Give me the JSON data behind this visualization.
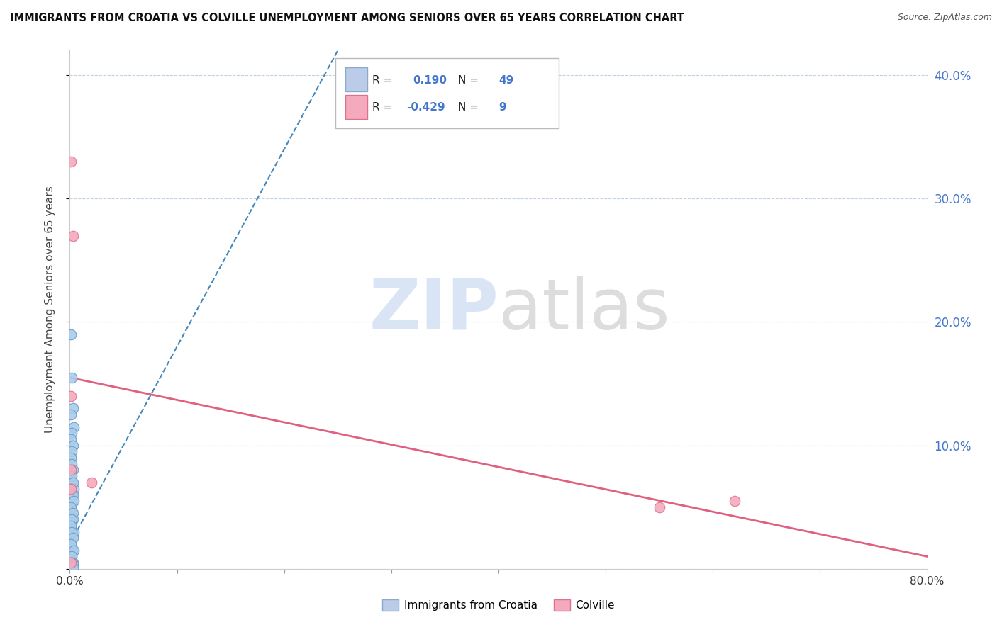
{
  "title": "IMMIGRANTS FROM CROATIA VS COLVILLE UNEMPLOYMENT AMONG SENIORS OVER 65 YEARS CORRELATION CHART",
  "source": "Source: ZipAtlas.com",
  "ylabel": "Unemployment Among Seniors over 65 years",
  "x_bottom_label1": "Immigrants from Croatia",
  "x_bottom_label2": "Colville",
  "xlim": [
    0.0,
    0.8
  ],
  "ylim": [
    0.0,
    0.42
  ],
  "yticks": [
    0.0,
    0.1,
    0.2,
    0.3,
    0.4
  ],
  "ytick_labels_right": [
    "",
    "10.0%",
    "20.0%",
    "30.0%",
    "40.0%"
  ],
  "xticks": [
    0.0,
    0.1,
    0.2,
    0.3,
    0.4,
    0.5,
    0.6,
    0.7,
    0.8
  ],
  "xtick_labels": [
    "0.0%",
    "",
    "",
    "",
    "",
    "",
    "",
    "",
    "80.0%"
  ],
  "blue_R": 0.19,
  "blue_N": 49,
  "pink_R": -0.429,
  "pink_N": 9,
  "blue_scatter_color": "#AACCE8",
  "blue_scatter_edge": "#6699CC",
  "pink_scatter_color": "#F4AABC",
  "pink_scatter_edge": "#E07090",
  "trendline_blue_color": "#4488BB",
  "trendline_pink_color": "#E06080",
  "legend_blue_face": "#BBCCE8",
  "legend_blue_edge": "#88AACC",
  "legend_pink_face": "#F4AABC",
  "legend_pink_edge": "#E07090",
  "right_axis_color": "#4477CC",
  "watermark_zip_color": "#C0D4EE",
  "watermark_atlas_color": "#AAAAAA",
  "blue_scatter_x": [
    0.001,
    0.002,
    0.003,
    0.001,
    0.004,
    0.002,
    0.001,
    0.003,
    0.002,
    0.001,
    0.002,
    0.003,
    0.001,
    0.002,
    0.004,
    0.003,
    0.002,
    0.001,
    0.002,
    0.003,
    0.001,
    0.004,
    0.002,
    0.001,
    0.003,
    0.002,
    0.001,
    0.002,
    0.003,
    0.001,
    0.002,
    0.004,
    0.001,
    0.003,
    0.002,
    0.001,
    0.002,
    0.003,
    0.001,
    0.004,
    0.002,
    0.003,
    0.001,
    0.002,
    0.003,
    0.002,
    0.001,
    0.002,
    0.003
  ],
  "blue_scatter_y": [
    0.19,
    0.155,
    0.13,
    0.125,
    0.115,
    0.11,
    0.105,
    0.1,
    0.095,
    0.09,
    0.085,
    0.08,
    0.075,
    0.07,
    0.065,
    0.06,
    0.055,
    0.05,
    0.045,
    0.04,
    0.035,
    0.03,
    0.025,
    0.02,
    0.015,
    0.01,
    0.08,
    0.075,
    0.07,
    0.065,
    0.06,
    0.055,
    0.05,
    0.045,
    0.04,
    0.035,
    0.03,
    0.025,
    0.02,
    0.015,
    0.01,
    0.005,
    0.005,
    0.005,
    0.004,
    0.003,
    0.002,
    0.001,
    0.001
  ],
  "pink_scatter_x": [
    0.001,
    0.003,
    0.001,
    0.001,
    0.02,
    0.55,
    0.62,
    0.001,
    0.001
  ],
  "pink_scatter_y": [
    0.33,
    0.27,
    0.14,
    0.08,
    0.07,
    0.05,
    0.055,
    0.065,
    0.005
  ],
  "blue_trend_x0": 0.0,
  "blue_trend_x1": 0.25,
  "blue_trend_y0": 0.02,
  "blue_trend_y1": 0.42,
  "pink_trend_x0": 0.0,
  "pink_trend_x1": 0.8,
  "pink_trend_y0": 0.155,
  "pink_trend_y1": 0.01,
  "figsize": [
    14.06,
    8.92
  ],
  "dpi": 100
}
